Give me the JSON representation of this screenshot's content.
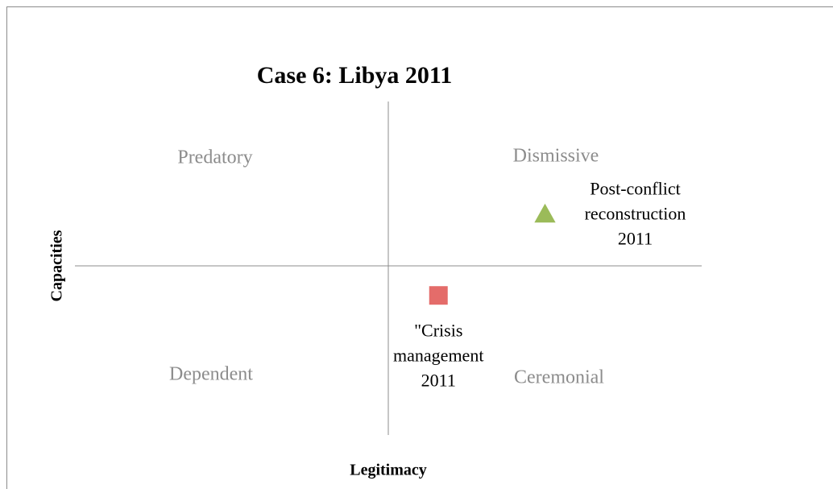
{
  "chart_data": {
    "type": "scatter",
    "title": "Case 6: Libya 2011",
    "x_label": "Legitimacy",
    "y_label": "Capacities",
    "quadrants": [
      "Predatory",
      "Dismissive",
      "Dependent",
      "Ceremonial"
    ],
    "xlim": [
      -1,
      1
    ],
    "ylim": [
      -1,
      1
    ],
    "points": [
      {
        "label": "Post-conflict\nreconstruction\n2011",
        "x": 0.5,
        "y": 0.32,
        "marker": "triangle",
        "color": "#9bbb59"
      },
      {
        "label": "\"Crisis\nmanagement\n2011",
        "x": 0.16,
        "y": -0.18,
        "marker": "square",
        "color": "#e46c6a"
      }
    ]
  }
}
